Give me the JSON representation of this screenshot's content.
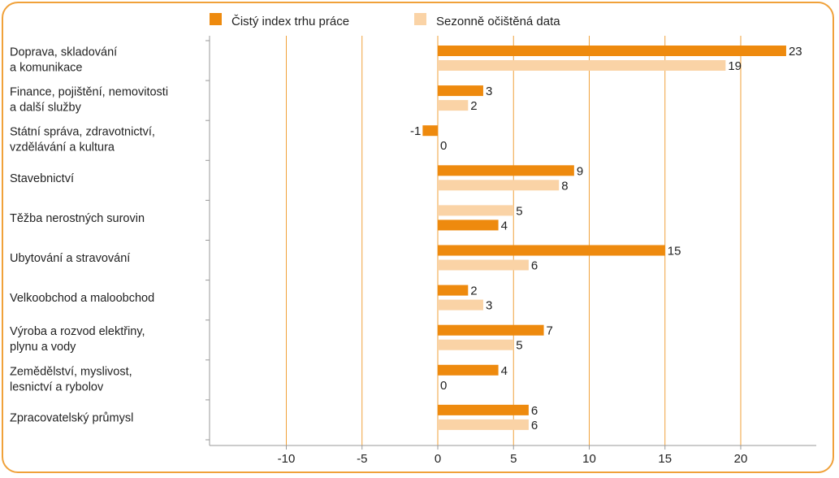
{
  "chart_data": {
    "type": "bar",
    "orientation": "horizontal",
    "categories": [
      [
        "Doprava, skladování",
        "a komunikace"
      ],
      [
        "Finance, pojištění, nemovitosti",
        "a další služby"
      ],
      [
        "Státní správa, zdravotnictví,",
        "vzdělávání a kultura"
      ],
      [
        "Stavebnictví"
      ],
      [
        "Těžba nerostných surovin"
      ],
      [
        "Ubytování a stravování"
      ],
      [
        "Velkoobchod a maloobchod"
      ],
      [
        "Výroba a rozvod elektřiny,",
        "plynu a vody"
      ],
      [
        "Zemědělství, myslivost,",
        "lesnictví a rybolov"
      ],
      [
        "Zpracovatelský průmysl"
      ]
    ],
    "series": [
      {
        "name": "Čistý index trhu práce",
        "color": "#ee8a0e",
        "values": [
          23,
          3,
          -1,
          9,
          4,
          15,
          2,
          7,
          4,
          6
        ]
      },
      {
        "name": "Sezonně očištěná data",
        "color": "#fad3a6",
        "values": [
          19,
          2,
          0,
          8,
          5,
          6,
          3,
          5,
          0,
          6
        ]
      }
    ],
    "series_order_per_row": [
      [
        "0",
        "1"
      ],
      [
        "0",
        "1"
      ],
      [
        "0",
        "1"
      ],
      [
        "0",
        "1"
      ],
      [
        "1",
        "0"
      ],
      [
        "0",
        "1"
      ],
      [
        "0",
        "1"
      ],
      [
        "0",
        "1"
      ],
      [
        "0",
        "1"
      ],
      [
        "0",
        "1"
      ]
    ],
    "xlim": [
      -15,
      25
    ],
    "xticks": [
      -10,
      -5,
      0,
      5,
      10,
      15,
      20
    ],
    "grid": true,
    "legend_position": "top",
    "gridline_color": "#f0a13a"
  }
}
